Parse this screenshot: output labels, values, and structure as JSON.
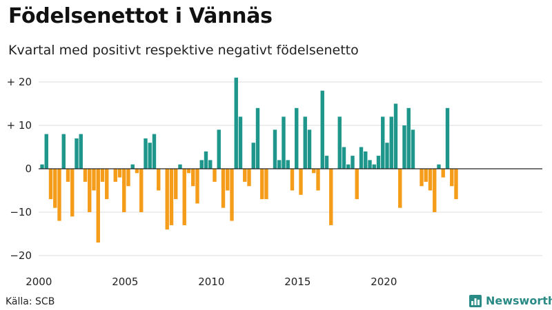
{
  "header": {
    "title": "Födelsenettot i Vännäs",
    "subtitle": "Kvartal med positivt respektive negativt födelsenetto"
  },
  "footer": {
    "source": "Källa: SCB",
    "brand": "Newsworthy"
  },
  "colors": {
    "positive": "#1f968b",
    "negative": "#f59d1b",
    "grid": "#dddddd",
    "axis": "#222222",
    "brand": "#2a8a85"
  },
  "chart_data": {
    "type": "bar",
    "title": "Födelsenettot i Vännäs",
    "subtitle": "Kvartal med positivt respektive negativt födelsenetto",
    "x_start_year": 2000,
    "x_tick_labels": [
      "2000",
      "2005",
      "2010",
      "2015",
      "2020"
    ],
    "y_tick_values": [
      20,
      10,
      0,
      -10,
      -20
    ],
    "y_tick_labels": [
      "+ 20",
      "+ 10",
      "0",
      "−10",
      "−20"
    ],
    "ylim": [
      -23,
      23
    ],
    "grid": true,
    "values": [
      1,
      8,
      -7,
      -9,
      -12,
      8,
      -3,
      -11,
      7,
      8,
      -3,
      -10,
      -5,
      -17,
      -3,
      -7,
      0,
      -3,
      -2,
      -10,
      -4,
      1,
      -1,
      -10,
      7,
      6,
      8,
      -5,
      0,
      -14,
      -13,
      -7,
      1,
      -13,
      -1,
      -4,
      -8,
      2,
      4,
      2,
      -3,
      9,
      -9,
      -5,
      -12,
      21,
      12,
      -3,
      -4,
      6,
      14,
      -7,
      -7,
      0,
      9,
      2,
      12,
      2,
      -5,
      14,
      -6,
      12,
      9,
      -1,
      -5,
      18,
      3,
      -13,
      0,
      12,
      5,
      1,
      3,
      -7,
      5,
      4,
      2,
      1,
      3,
      12,
      6,
      12,
      15,
      -9,
      10,
      14,
      9,
      0,
      -4,
      -3,
      -5,
      -10,
      1,
      -2,
      14,
      -4,
      -7
    ]
  }
}
